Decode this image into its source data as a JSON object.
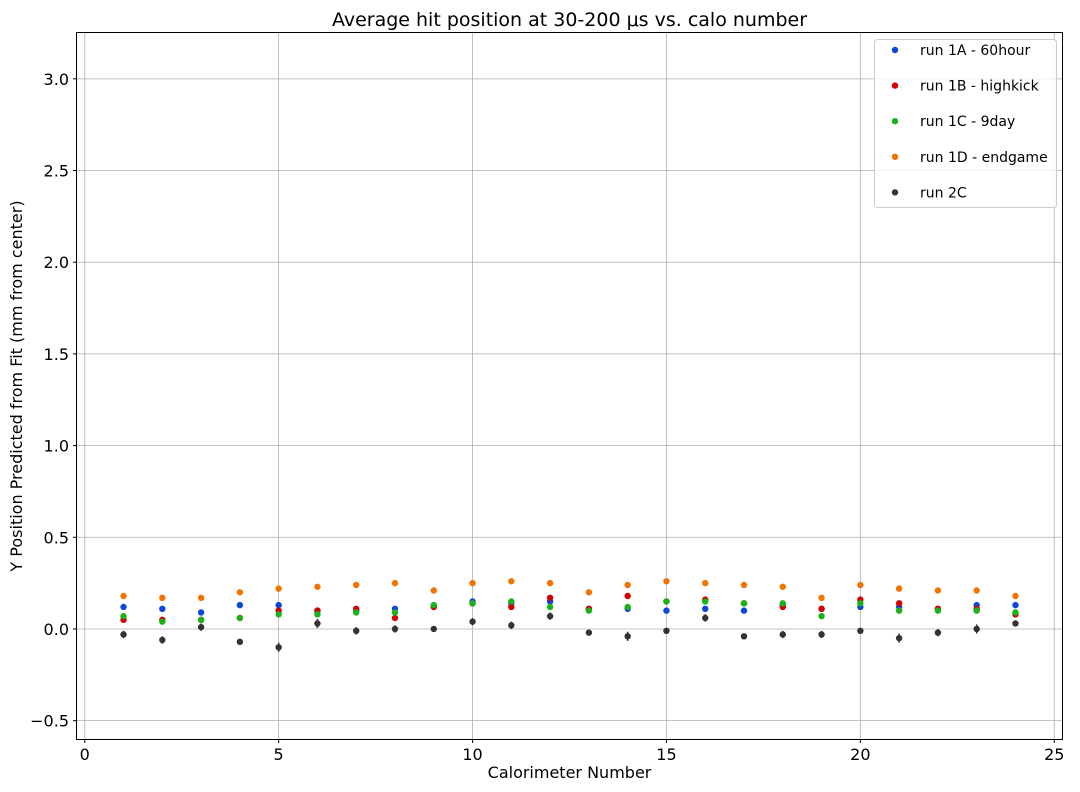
{
  "chart_data": {
    "type": "scatter",
    "title": "Average hit position at 30-200 μs vs. calo number",
    "xlabel": "Calorimeter Number",
    "ylabel": "Y Position Predicted from Fit (mm from center)",
    "xlim": [
      -0.2,
      25.2
    ],
    "ylim": [
      -0.6,
      3.25
    ],
    "xticks": [
      0,
      5,
      10,
      15,
      20,
      25
    ],
    "xtick_labels": [
      "0",
      "5",
      "10",
      "15",
      "20",
      "25"
    ],
    "yticks": [
      -0.5,
      0.0,
      0.5,
      1.0,
      1.5,
      2.0,
      2.5,
      3.0
    ],
    "ytick_labels": [
      "−0.5",
      "0.0",
      "0.5",
      "1.0",
      "1.5",
      "2.0",
      "2.5",
      "3.0"
    ],
    "grid": true,
    "legend_position": "top-right",
    "x": [
      1,
      2,
      3,
      4,
      5,
      6,
      7,
      8,
      9,
      10,
      11,
      12,
      13,
      14,
      15,
      16,
      17,
      18,
      19,
      20,
      21,
      22,
      23,
      24
    ],
    "series": [
      {
        "name": "run 1A - 60hour",
        "color": "#0d47d9",
        "values": [
          0.12,
          0.11,
          0.09,
          0.13,
          0.13,
          0.1,
          0.1,
          0.11,
          0.12,
          0.15,
          0.14,
          0.15,
          0.11,
          0.11,
          0.1,
          0.11,
          0.1,
          0.13,
          0.11,
          0.12,
          0.12,
          0.11,
          0.13,
          0.13
        ]
      },
      {
        "name": "run 1B - highkick",
        "color": "#d40000",
        "values": [
          0.05,
          0.05,
          0.05,
          0.06,
          0.1,
          0.1,
          0.11,
          0.06,
          0.12,
          0.14,
          0.12,
          0.17,
          0.11,
          0.18,
          0.15,
          0.16,
          0.14,
          0.12,
          0.11,
          0.16,
          0.14,
          0.11,
          0.11,
          0.08
        ]
      },
      {
        "name": "run 1C - 9day",
        "color": "#19b219",
        "values": [
          0.07,
          0.04,
          0.05,
          0.06,
          0.08,
          0.08,
          0.09,
          0.09,
          0.13,
          0.14,
          0.15,
          0.12,
          0.1,
          0.12,
          0.15,
          0.15,
          0.14,
          0.14,
          0.07,
          0.14,
          0.1,
          0.1,
          0.1,
          0.09
        ]
      },
      {
        "name": "run 1D - endgame",
        "color": "#f27300",
        "values": [
          0.18,
          0.17,
          0.17,
          0.2,
          0.22,
          0.23,
          0.24,
          0.25,
          0.21,
          0.25,
          0.26,
          0.25,
          0.2,
          0.24,
          0.26,
          0.25,
          0.24,
          0.23,
          0.17,
          0.24,
          0.22,
          0.21,
          0.21,
          0.18
        ]
      },
      {
        "name": "run 2C",
        "color": "#333333",
        "values": [
          -0.03,
          -0.06,
          0.01,
          -0.07,
          -0.1,
          0.03,
          -0.01,
          0.0,
          0.0,
          0.04,
          0.02,
          0.07,
          -0.02,
          -0.04,
          -0.01,
          0.06,
          -0.04,
          -0.03,
          -0.03,
          -0.01,
          -0.05,
          -0.02,
          0.0,
          0.03
        ],
        "errors": [
          0.02,
          0.02,
          0.02,
          0.015,
          0.025,
          0.025,
          0.02,
          0.02,
          0.015,
          0.02,
          0.02,
          0.02,
          0.015,
          0.025,
          0.015,
          0.02,
          0.015,
          0.02,
          0.02,
          0.015,
          0.025,
          0.02,
          0.025,
          0.015
        ]
      }
    ]
  }
}
